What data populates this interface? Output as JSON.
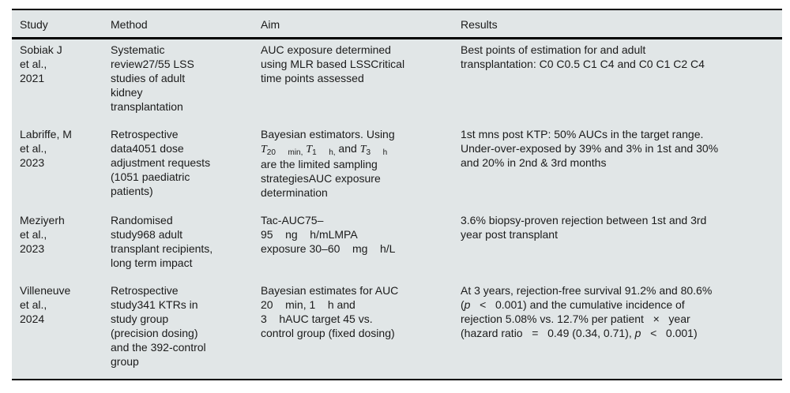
{
  "colors": {
    "table_background": "#e1e6e7",
    "rule_color": "#000000",
    "text_color": "#1b1b1b",
    "page_background": "#ffffff"
  },
  "table": {
    "headers": [
      "Study",
      "Method",
      "Aim",
      "Results"
    ],
    "rows": [
      {
        "study": "Sobiak J\net al.,\n2021",
        "method": "Systematic\nreview27/55 LSS\nstudies of adult\nkidney\ntransplantation",
        "aim": "AUC exposure determined\nusing MLR based LSSCritical\ntime points assessed",
        "results": "Best points of estimation for and adult\ntransplantation: C0 C0.5 C1 C4 and C0 C1 C2 C4"
      },
      {
        "study": "Labriffe, M\net al.,\n2023",
        "method": "Retrospective\ndata4051 dose\nadjustment requests\n(1051 paediatric\npatients)",
        "aim_rich": [
          [
            {
              "t": "Bayesian estimators. Using"
            }
          ],
          [
            {
              "t": "T",
              "s": "ti"
            },
            {
              "t": "20",
              "s": "sub"
            },
            {
              "t": "    "
            },
            {
              "t": "min,",
              "s": "sub"
            },
            {
              "t": " "
            },
            {
              "t": "T",
              "s": "ti"
            },
            {
              "t": "1",
              "s": "sub"
            },
            {
              "t": "    "
            },
            {
              "t": "h,",
              "s": "sub"
            },
            {
              "t": " and "
            },
            {
              "t": "T",
              "s": "ti"
            },
            {
              "t": "3",
              "s": "sub"
            },
            {
              "t": "    "
            },
            {
              "t": "h",
              "s": "sub"
            }
          ],
          [
            {
              "t": "are the limited sampling"
            }
          ],
          [
            {
              "t": "strategiesAUC exposure"
            }
          ],
          [
            {
              "t": "determination"
            }
          ]
        ],
        "results": "1st mns post KTP: 50% AUCs in the target range.\nUnder-over-exposed by 39% and 3% in 1st and 30%\nand 20% in 2nd & 3rd months"
      },
      {
        "study": "Meziyerh\net al.,\n2023",
        "method": "Randomised\nstudy968 adult\ntransplant recipients,\nlong term impact",
        "aim": "Tac-AUC75–\n95    ng    h/mLMPA\nexposure 30–60    mg    h/L",
        "results": "3.6% biopsy-proven rejection between 1st and 3rd\nyear post transplant"
      },
      {
        "study": "Villeneuve\net al.,\n2024",
        "method": "Retrospective\nstudy341 KTRs in\nstudy group\n(precision dosing)\nand the 392-control\ngroup",
        "aim": "Bayesian estimates for AUC\n20    min, 1    h and\n3    hAUC target 45 vs.\ncontrol group (fixed dosing)",
        "results_rich": [
          [
            {
              "t": "At 3 years, rejection-free survival 91.2% and 80.6%"
            }
          ],
          [
            {
              "t": "("
            },
            {
              "t": "p",
              "s": "i"
            },
            {
              "t": "   <   0.001) and the cumulative incidence of"
            }
          ],
          [
            {
              "t": "rejection 5.08% vs. 12.7% per patient   ×   year"
            }
          ],
          [
            {
              "t": "(hazard ratio   =   0.49 (0.34, 0.71), "
            },
            {
              "t": "p",
              "s": "i"
            },
            {
              "t": "   <   0.001)"
            }
          ]
        ]
      }
    ]
  }
}
